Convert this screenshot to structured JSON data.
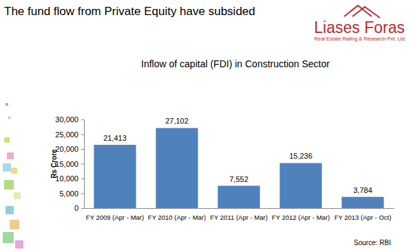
{
  "header": {
    "headline": "The fund flow from Private Equity have subsided",
    "brand": "Liases Foras",
    "tagline": "Real Estate Rating & Research Pvt. Ltd."
  },
  "chart_data": {
    "type": "bar",
    "title": "Inflow of capital (FDI) in Construction Sector",
    "ylabel": "Rs Crore",
    "source": "Source: RBI",
    "categories": [
      "FY 2009 (Apr - Mar)",
      "FY 2010 (Apr - Mar)",
      "FY 2011 (Apr - Mar)",
      "FY 2012 (Apr - Mar)",
      "FY 2013 (Apr - Oct)"
    ],
    "values": [
      21413,
      27102,
      7552,
      15236,
      3784
    ],
    "value_labels": [
      "21,413",
      "27,102",
      "7,552",
      "15,236",
      "3,784"
    ],
    "color": "#4f81bd",
    "ylim": [
      0,
      30000
    ],
    "yticks": [
      0,
      {
        "value": 5000,
        "label": "5,000"
      },
      {
        "value": 10000,
        "label": "10,000"
      },
      {
        "value": 15000,
        "label": "15,000"
      },
      {
        "value": 20000,
        "label": "20,000"
      },
      {
        "value": 25000,
        "label": "25,000"
      },
      {
        "value": 30000,
        "label": "30,000"
      }
    ],
    "grid": false,
    "data_labels": true
  }
}
